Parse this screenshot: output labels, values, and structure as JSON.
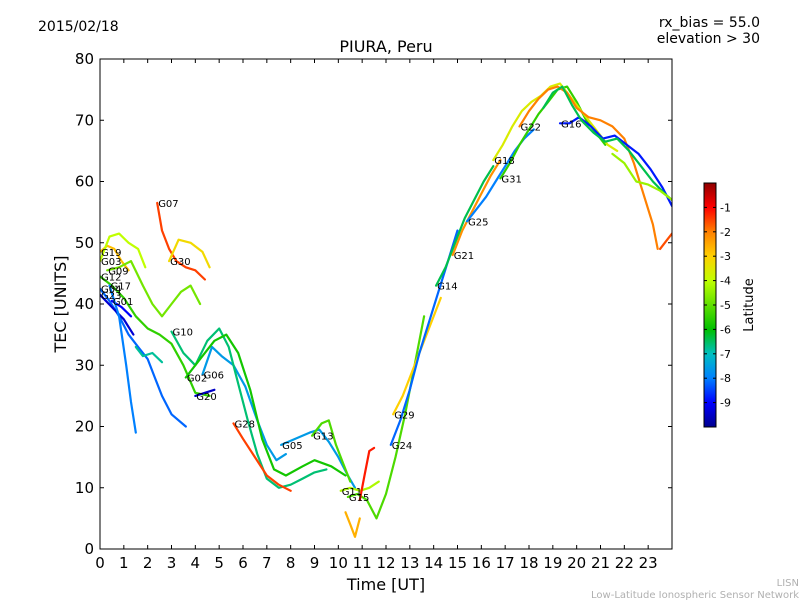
{
  "header": {
    "date": "2015/02/18",
    "rx_bias": "rx_bias = 55.0",
    "elevation": "elevation > 30"
  },
  "footer": {
    "line1": "LISN",
    "line2": "Low-Latitude Ionospheric Sensor Network"
  },
  "colors": {
    "colormap": [
      "#00008f",
      "#0000ff",
      "#0080ff",
      "#00c0c0",
      "#00c000",
      "#60e000",
      "#c0ff00",
      "#ffd000",
      "#ff8000",
      "#ff0000",
      "#8f0000"
    ]
  },
  "chart_data": {
    "type": "line",
    "title": "PIURA, Peru",
    "xlabel": "Time [UT]",
    "ylabel": "TEC [UNITS]",
    "xlim": [
      0,
      24
    ],
    "ylim": [
      0,
      80
    ],
    "xticks": [
      "0",
      "1",
      "2",
      "3",
      "4",
      "5",
      "6",
      "7",
      "8",
      "9",
      "10",
      "11",
      "12",
      "13",
      "14",
      "15",
      "16",
      "17",
      "18",
      "19",
      "20",
      "21",
      "22",
      "23"
    ],
    "yticks": [
      "0",
      "10",
      "20",
      "30",
      "40",
      "50",
      "60",
      "70",
      "80"
    ],
    "grid": false,
    "colorbar": {
      "label": "Latitude",
      "range": [
        -10,
        0
      ],
      "ticks": [
        "-1",
        "-2",
        "-3",
        "-4",
        "-5",
        "-6",
        "-7",
        "-8",
        "-9"
      ]
    },
    "series": [
      {
        "name": "G07",
        "color_lat": -1.5,
        "points": [
          [
            2.4,
            56.5
          ],
          [
            2.6,
            52
          ],
          [
            2.9,
            49
          ],
          [
            3.2,
            47
          ],
          [
            3.6,
            46
          ],
          [
            4.0,
            45.5
          ],
          [
            4.4,
            44
          ]
        ]
      },
      {
        "name": "G19",
        "color_lat": -2.8,
        "points": [
          [
            0.0,
            48.5
          ],
          [
            0.3,
            49.5
          ],
          [
            0.6,
            49
          ],
          [
            0.9,
            47
          ],
          [
            1.2,
            45.5
          ]
        ]
      },
      {
        "name": "G03",
        "color_lat": -4.0,
        "points": [
          [
            0.0,
            47
          ],
          [
            0.4,
            51
          ],
          [
            0.8,
            51.5
          ],
          [
            1.2,
            50
          ],
          [
            1.6,
            49
          ],
          [
            1.9,
            46
          ]
        ]
      },
      {
        "name": "G09",
        "color_lat": -4.8,
        "points": [
          [
            0.3,
            45.5
          ],
          [
            0.8,
            46
          ],
          [
            1.3,
            47
          ],
          [
            1.8,
            43
          ],
          [
            2.2,
            40
          ],
          [
            2.6,
            38
          ],
          [
            3.0,
            40
          ],
          [
            3.4,
            42
          ],
          [
            3.8,
            43
          ],
          [
            4.2,
            40
          ]
        ]
      },
      {
        "name": "G30",
        "color_lat": -3.2,
        "points": [
          [
            2.9,
            47
          ],
          [
            3.3,
            50.5
          ],
          [
            3.8,
            50
          ],
          [
            4.3,
            48.5
          ],
          [
            4.6,
            46
          ]
        ]
      },
      {
        "name": "G12",
        "color_lat": -5.5,
        "points": [
          [
            0.0,
            44.5
          ],
          [
            0.5,
            43
          ],
          [
            1.0,
            41
          ],
          [
            1.5,
            38
          ],
          [
            2.0,
            36
          ],
          [
            2.5,
            35
          ],
          [
            3.0,
            33.5
          ],
          [
            3.5,
            30
          ],
          [
            4.0,
            25.5
          ],
          [
            4.6,
            25
          ]
        ]
      },
      {
        "name": "G04",
        "color_lat": -8.2,
        "points": [
          [
            0.0,
            42.5
          ],
          [
            0.4,
            40.5
          ],
          [
            0.8,
            38
          ],
          [
            1.2,
            35
          ],
          [
            1.6,
            33
          ],
          [
            2.0,
            31
          ],
          [
            2.3,
            28
          ],
          [
            2.6,
            25
          ],
          [
            3.0,
            22
          ],
          [
            3.6,
            20
          ]
        ]
      },
      {
        "name": "G23",
        "color_lat": -9.4,
        "points": [
          [
            0.0,
            41.5
          ],
          [
            0.5,
            39.5
          ],
          [
            1.0,
            37.5
          ],
          [
            1.4,
            35
          ]
        ]
      },
      {
        "name": "G01",
        "color_lat": -9.0,
        "points": [
          [
            0.5,
            40.5
          ],
          [
            0.9,
            39.5
          ],
          [
            1.3,
            38
          ]
        ]
      },
      {
        "name": "G17",
        "color_lat": -8.0,
        "points": [
          [
            0.4,
            43
          ],
          [
            0.8,
            38
          ],
          [
            1.1,
            30
          ],
          [
            1.3,
            24
          ],
          [
            1.5,
            19
          ]
        ]
      },
      {
        "name": "G06",
        "color_lat": -7.6,
        "points": [
          [
            4.3,
            28.5
          ],
          [
            4.7,
            33
          ],
          [
            5.1,
            31.5
          ],
          [
            5.6,
            30
          ],
          [
            6.1,
            26.5
          ],
          [
            6.6,
            21
          ],
          [
            7.0,
            17
          ],
          [
            7.4,
            14.5
          ],
          [
            7.8,
            15.5
          ]
        ]
      },
      {
        "name": "G20",
        "color_lat": -9.5,
        "points": [
          [
            4.0,
            25
          ],
          [
            4.4,
            25.5
          ],
          [
            4.8,
            26
          ]
        ]
      },
      {
        "name": "G10",
        "color_lat": -6.6,
        "points": [
          [
            3.0,
            35.5
          ],
          [
            3.5,
            32
          ],
          [
            4.0,
            30
          ],
          [
            4.5,
            34
          ],
          [
            5.0,
            36
          ],
          [
            5.4,
            33
          ],
          [
            5.8,
            27
          ],
          [
            6.2,
            21
          ],
          [
            6.6,
            15.5
          ],
          [
            7.0,
            11.5
          ],
          [
            7.5,
            10
          ],
          [
            8.0,
            10.5
          ],
          [
            8.5,
            11.5
          ],
          [
            9.0,
            12.5
          ],
          [
            9.5,
            13
          ]
        ]
      },
      {
        "name": "G02",
        "color_lat": -5.8,
        "points": [
          [
            3.6,
            28
          ],
          [
            4.2,
            31
          ],
          [
            4.8,
            34
          ],
          [
            5.3,
            35
          ],
          [
            5.8,
            32
          ],
          [
            6.3,
            26
          ],
          [
            6.8,
            18
          ],
          [
            7.3,
            13
          ],
          [
            7.8,
            12
          ],
          [
            8.5,
            13.5
          ],
          [
            9.0,
            14.5
          ],
          [
            9.7,
            13.5
          ],
          [
            10.3,
            12
          ]
        ]
      },
      {
        "name": "G28",
        "color_lat": -1.5,
        "points": [
          [
            5.6,
            20.5
          ],
          [
            6.0,
            18
          ],
          [
            6.5,
            15
          ],
          [
            7.0,
            12
          ],
          [
            7.5,
            10.5
          ],
          [
            8.0,
            9.5
          ]
        ]
      },
      {
        "name": "G05",
        "color_lat": -7.6,
        "points": [
          [
            7.6,
            17
          ],
          [
            8.2,
            18
          ],
          [
            8.8,
            19
          ],
          [
            9.2,
            19.5
          ],
          [
            9.6,
            17.5
          ],
          [
            10.0,
            15
          ],
          [
            10.4,
            12
          ],
          [
            10.7,
            10
          ]
        ]
      },
      {
        "name": "G13",
        "color_lat": -5.2,
        "points": [
          [
            8.9,
            18.5
          ],
          [
            9.3,
            20.5
          ],
          [
            9.6,
            21
          ],
          [
            9.9,
            17
          ],
          [
            10.2,
            14
          ],
          [
            10.5,
            11
          ]
        ]
      },
      {
        "name": "G11",
        "color_lat": -4.2,
        "points": [
          [
            10.1,
            9.5
          ],
          [
            10.5,
            10
          ],
          [
            10.9,
            9.5
          ],
          [
            11.3,
            10
          ],
          [
            11.7,
            11
          ]
        ]
      },
      {
        "name": "G15",
        "color_lat": -5.2,
        "points": [
          [
            10.4,
            8.5
          ],
          [
            10.8,
            9
          ],
          [
            11.2,
            8
          ],
          [
            11.6,
            5
          ],
          [
            12.0,
            9
          ],
          [
            12.4,
            15
          ],
          [
            12.8,
            22
          ],
          [
            13.2,
            30
          ],
          [
            13.6,
            38
          ]
        ]
      },
      {
        "name": "G29",
        "color_lat": -3.0,
        "points": [
          [
            12.3,
            22
          ],
          [
            12.7,
            25
          ],
          [
            13.1,
            29
          ],
          [
            13.5,
            33
          ],
          [
            13.9,
            37
          ],
          [
            14.3,
            41
          ]
        ]
      },
      {
        "name": "G24",
        "color_lat": -8.2,
        "points": [
          [
            12.2,
            17
          ],
          [
            12.6,
            21
          ],
          [
            13.0,
            26
          ],
          [
            13.4,
            32
          ],
          [
            13.8,
            37
          ],
          [
            14.2,
            42
          ],
          [
            14.6,
            47
          ],
          [
            15.0,
            52
          ]
        ]
      },
      {
        "name": "G21",
        "color_lat": -2.2,
        "points": [
          [
            14.8,
            48
          ],
          [
            15.2,
            52
          ],
          [
            15.6,
            55
          ],
          [
            16.0,
            58
          ],
          [
            16.4,
            61
          ],
          [
            16.8,
            63.5
          ]
        ]
      },
      {
        "name": "G14",
        "color_lat": -6.4,
        "points": [
          [
            14.1,
            43
          ],
          [
            14.5,
            46
          ],
          [
            14.9,
            50
          ],
          [
            15.3,
            54
          ],
          [
            15.7,
            57
          ],
          [
            16.1,
            60
          ],
          [
            16.5,
            62.5
          ]
        ]
      },
      {
        "name": "G25",
        "color_lat": -8.0,
        "points": [
          [
            15.4,
            53.5
          ],
          [
            15.8,
            55.5
          ],
          [
            16.2,
            57.5
          ],
          [
            16.6,
            60
          ],
          [
            17.0,
            62.5
          ],
          [
            17.4,
            65
          ],
          [
            17.8,
            67
          ],
          [
            18.2,
            68.5
          ]
        ]
      },
      {
        "name": "G31",
        "color_lat": -5.5,
        "points": [
          [
            16.8,
            60.5
          ],
          [
            17.2,
            63
          ],
          [
            17.6,
            66
          ],
          [
            18.0,
            68.5
          ],
          [
            18.4,
            71
          ],
          [
            18.8,
            73
          ],
          [
            19.2,
            75
          ],
          [
            19.6,
            75.5
          ],
          [
            20.0,
            73
          ],
          [
            20.4,
            70
          ],
          [
            20.8,
            68
          ],
          [
            21.2,
            66
          ]
        ]
      },
      {
        "name": "G18",
        "color_lat": -3.6,
        "points": [
          [
            16.5,
            63.5
          ],
          [
            16.9,
            66
          ],
          [
            17.3,
            69
          ],
          [
            17.7,
            71.5
          ],
          [
            18.1,
            73
          ],
          [
            18.5,
            74
          ],
          [
            18.9,
            75.5
          ],
          [
            19.3,
            76
          ],
          [
            19.7,
            74
          ],
          [
            20.1,
            72
          ],
          [
            20.5,
            70
          ],
          [
            20.9,
            68
          ],
          [
            21.3,
            66
          ],
          [
            21.7,
            65
          ]
        ]
      },
      {
        "name": "G22",
        "color_lat": -2.0,
        "points": [
          [
            17.6,
            69
          ],
          [
            18.0,
            71.5
          ],
          [
            18.4,
            73.5
          ],
          [
            18.8,
            75
          ],
          [
            19.2,
            75.5
          ],
          [
            19.6,
            74.5
          ],
          [
            20.0,
            72
          ],
          [
            20.5,
            70.5
          ],
          [
            21.0,
            70
          ],
          [
            21.5,
            69
          ],
          [
            22.0,
            67
          ],
          [
            22.4,
            63
          ],
          [
            22.8,
            58
          ],
          [
            23.2,
            53
          ],
          [
            23.4,
            49
          ]
        ]
      },
      {
        "name": "G16",
        "color_lat": -8.8,
        "points": [
          [
            19.3,
            69.5
          ],
          [
            19.7,
            69.5
          ],
          [
            20.1,
            70.5
          ],
          [
            20.6,
            69
          ],
          [
            21.1,
            67
          ],
          [
            21.6,
            67.5
          ],
          [
            22.1,
            66
          ],
          [
            22.6,
            64.5
          ],
          [
            23.1,
            62
          ],
          [
            23.6,
            59
          ],
          [
            24.0,
            56
          ]
        ]
      },
      {
        "name": "",
        "color_lat": -6.4,
        "points": [
          [
            18.6,
            72
          ],
          [
            19.0,
            74.5
          ],
          [
            19.4,
            75.5
          ],
          [
            19.8,
            72.5
          ],
          [
            20.2,
            70
          ],
          [
            20.7,
            68
          ],
          [
            21.2,
            66.5
          ],
          [
            21.7,
            67
          ],
          [
            22.2,
            65
          ],
          [
            22.7,
            62.5
          ],
          [
            23.2,
            60
          ],
          [
            23.7,
            58
          ],
          [
            24.0,
            57
          ]
        ]
      },
      {
        "name": "",
        "color_lat": -4.4,
        "points": [
          [
            21.5,
            64.5
          ],
          [
            22.0,
            63
          ],
          [
            22.5,
            60
          ],
          [
            23.0,
            59.5
          ],
          [
            23.5,
            58.5
          ],
          [
            24.0,
            57
          ]
        ]
      },
      {
        "name": "",
        "color_lat": -1.6,
        "points": [
          [
            23.5,
            49
          ],
          [
            23.8,
            50.5
          ],
          [
            24.0,
            51.5
          ]
        ]
      },
      {
        "name": "",
        "color_lat": -2.6,
        "points": [
          [
            10.3,
            6
          ],
          [
            10.5,
            4
          ],
          [
            10.7,
            2
          ],
          [
            10.9,
            5
          ]
        ]
      },
      {
        "name": "",
        "color_lat": -1.2,
        "points": [
          [
            10.9,
            8
          ],
          [
            11.1,
            12
          ],
          [
            11.3,
            16
          ],
          [
            11.5,
            16.5
          ]
        ]
      },
      {
        "name": "",
        "color_lat": -6.8,
        "points": [
          [
            1.5,
            33
          ],
          [
            1.8,
            31.5
          ],
          [
            2.2,
            32
          ],
          [
            2.6,
            30.5
          ]
        ]
      }
    ]
  }
}
